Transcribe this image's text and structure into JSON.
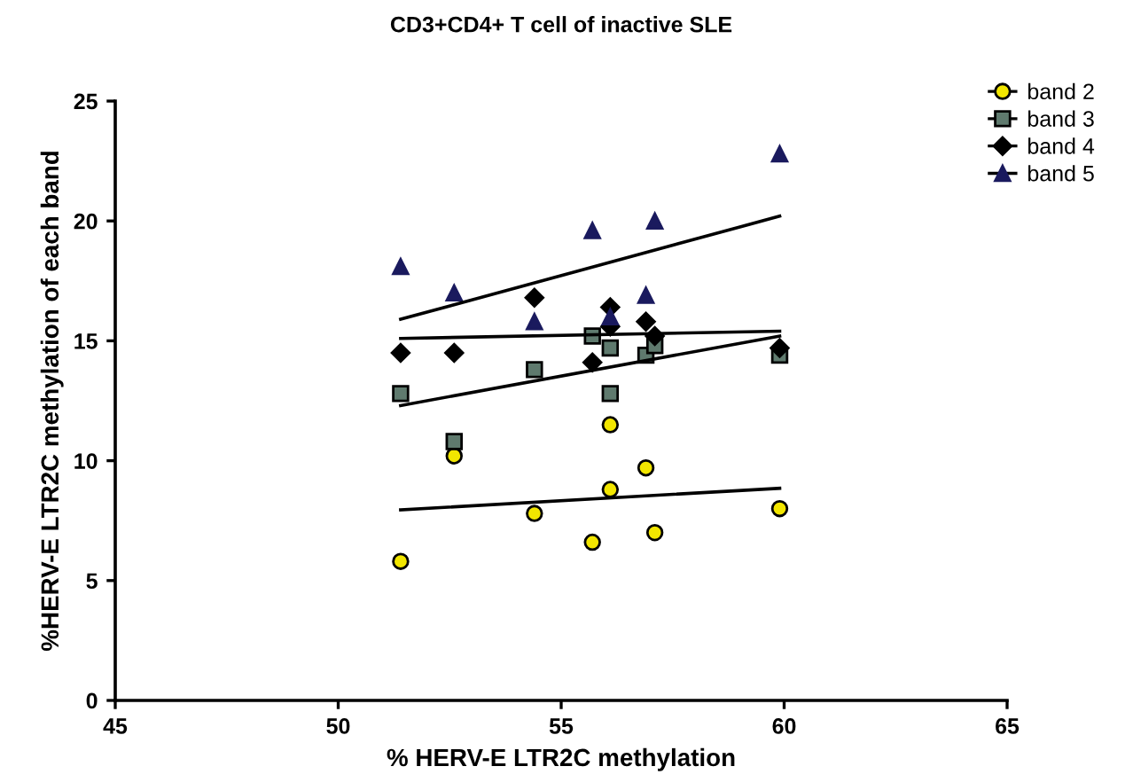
{
  "chart_data": {
    "type": "scatter",
    "title": "CD3+CD4+ T cell of inactive SLE",
    "xlabel": "% HERV-E LTR2C methylation",
    "ylabel": "%HERV-E LTR2C methylation of each band",
    "xlim": [
      45,
      65
    ],
    "xticks": [
      45,
      50,
      55,
      60,
      65
    ],
    "ylim": [
      0,
      25
    ],
    "yticks": [
      0,
      5,
      10,
      15,
      20,
      25
    ],
    "grid": false,
    "legend": "top right",
    "series": [
      {
        "name": "band 2",
        "color": "#f2e600",
        "marker": "circle",
        "x": [
          51.4,
          52.6,
          54.4,
          55.7,
          56.1,
          56.1,
          56.9,
          57.1,
          59.9
        ],
        "values": [
          5.8,
          10.2,
          7.8,
          6.6,
          11.5,
          8.8,
          9.7,
          7.0,
          8.0
        ]
      },
      {
        "name": "band 3",
        "color": "#5f7a6e",
        "marker": "square",
        "x": [
          51.4,
          52.6,
          54.4,
          55.7,
          56.1,
          56.1,
          56.9,
          57.1,
          59.9
        ],
        "values": [
          12.8,
          10.8,
          13.8,
          15.2,
          14.7,
          12.8,
          14.4,
          14.8,
          14.4
        ]
      },
      {
        "name": "band 4",
        "color": "#000000",
        "marker": "diamond",
        "x": [
          51.4,
          52.6,
          54.4,
          55.7,
          56.1,
          56.1,
          56.9,
          57.1,
          59.9
        ],
        "values": [
          14.5,
          14.5,
          16.8,
          14.1,
          16.4,
          15.6,
          15.8,
          15.2,
          14.7
        ]
      },
      {
        "name": "band 5",
        "color": "#1a1a5e",
        "marker": "triangle",
        "x": [
          51.4,
          52.6,
          54.4,
          55.7,
          56.1,
          56.9,
          57.1,
          59.9
        ],
        "values": [
          18.1,
          17.0,
          15.8,
          19.6,
          16.0,
          16.9,
          20.0,
          22.8
        ]
      },
      {
        "type": "line",
        "color": "#000000",
        "marker": "none",
        "x": [
          51.4,
          59.9
        ],
        "values": [
          7.95,
          8.85
        ]
      },
      {
        "type": "line",
        "color": "#000000",
        "marker": "none",
        "x": [
          51.4,
          59.9
        ],
        "values": [
          12.3,
          15.2
        ]
      },
      {
        "type": "line",
        "color": "#000000",
        "marker": "none",
        "x": [
          51.4,
          59.9
        ],
        "values": [
          15.1,
          15.4
        ]
      },
      {
        "type": "line",
        "color": "#000000",
        "marker": "none",
        "x": [
          51.4,
          59.9
        ],
        "values": [
          15.9,
          20.2
        ]
      }
    ]
  }
}
